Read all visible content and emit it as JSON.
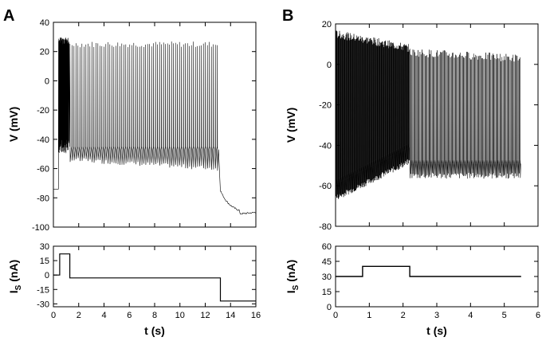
{
  "panels": [
    {
      "id": "A",
      "label": "A",
      "x_axis": {
        "label": "t (s)",
        "ticks": [
          0,
          2,
          4,
          6,
          8,
          10,
          12,
          14,
          16
        ],
        "range": [
          0,
          16
        ]
      },
      "voltage_axis": {
        "label": "V (mV)",
        "ticks": [
          -100,
          -80,
          -60,
          -40,
          -20,
          0,
          20,
          40
        ],
        "range": [
          -100,
          40
        ]
      },
      "current_axis": {
        "label": "I",
        "label_subscript": "S",
        "label_unit": " (nA)",
        "ticks": [
          -30,
          -15,
          0,
          15,
          30
        ],
        "range": [
          -33,
          30
        ]
      }
    },
    {
      "id": "B",
      "label": "B",
      "x_axis": {
        "label": "t (s)",
        "ticks": [
          0,
          1,
          2,
          3,
          4,
          5,
          6
        ],
        "range": [
          0,
          6
        ]
      },
      "voltage_axis": {
        "label": "V (mV)",
        "ticks": [
          -80,
          -60,
          -40,
          -20,
          0,
          20
        ],
        "range": [
          -80,
          20
        ]
      },
      "current_axis": {
        "label": "I",
        "label_subscript": "S",
        "label_unit": " (nA)",
        "ticks": [
          0,
          15,
          30,
          45,
          60
        ],
        "range": [
          0,
          60
        ]
      }
    }
  ],
  "chart_data": [
    {
      "type": "line",
      "panel": "A",
      "plot": "voltage",
      "series": [
        {
          "segments": [
            {
              "kind": "flat",
              "t": [
                0,
                0.4
              ],
              "v": -74
            },
            {
              "kind": "spike_burst",
              "t": [
                0.4,
                1.25
              ],
              "rest": -45,
              "peak": 30,
              "count": 40
            },
            {
              "kind": "tonic_spikes",
              "t": [
                1.3,
                13.1
              ],
              "trough_start": -54,
              "trough_end": -60,
              "ahp_peak": -45,
              "peak": 25,
              "count": 75
            },
            {
              "kind": "decay",
              "t": [
                13.2,
                16
              ],
              "v_start": -75,
              "v_min": -91,
              "v_end": -90
            }
          ]
        }
      ],
      "xlim": [
        0,
        16
      ],
      "ylim": [
        -100,
        40
      ]
    },
    {
      "type": "line",
      "panel": "A",
      "plot": "current",
      "x": [
        0,
        0.5,
        0.5,
        1.3,
        1.3,
        13.2,
        13.2,
        16
      ],
      "y": [
        0,
        0,
        22,
        22,
        -3,
        -3,
        -27,
        -27
      ],
      "xlim": [
        0,
        16
      ],
      "ylim": [
        -33,
        30
      ]
    },
    {
      "type": "line",
      "panel": "B",
      "plot": "voltage",
      "series": [
        {
          "segments": [
            {
              "kind": "dense_spikes",
              "t": [
                0,
                2.2
              ],
              "trough_start": -66,
              "trough_end": -48,
              "peak_start": 15,
              "peak_end": 8,
              "count": 150
            },
            {
              "kind": "tonic_spikes",
              "t": [
                2.2,
                5.5
              ],
              "trough": -55,
              "ahp_peak": -47,
              "peak_start": 6,
              "peak_end": 3,
              "count": 110
            }
          ]
        }
      ],
      "xlim": [
        0,
        6
      ],
      "ylim": [
        -80,
        20
      ]
    },
    {
      "type": "line",
      "panel": "B",
      "plot": "current",
      "x": [
        0,
        0.8,
        0.8,
        2.2,
        2.2,
        5.5
      ],
      "y": [
        30,
        30,
        40,
        40,
        30,
        30
      ],
      "xlim": [
        0,
        6
      ],
      "ylim": [
        0,
        60
      ]
    }
  ]
}
